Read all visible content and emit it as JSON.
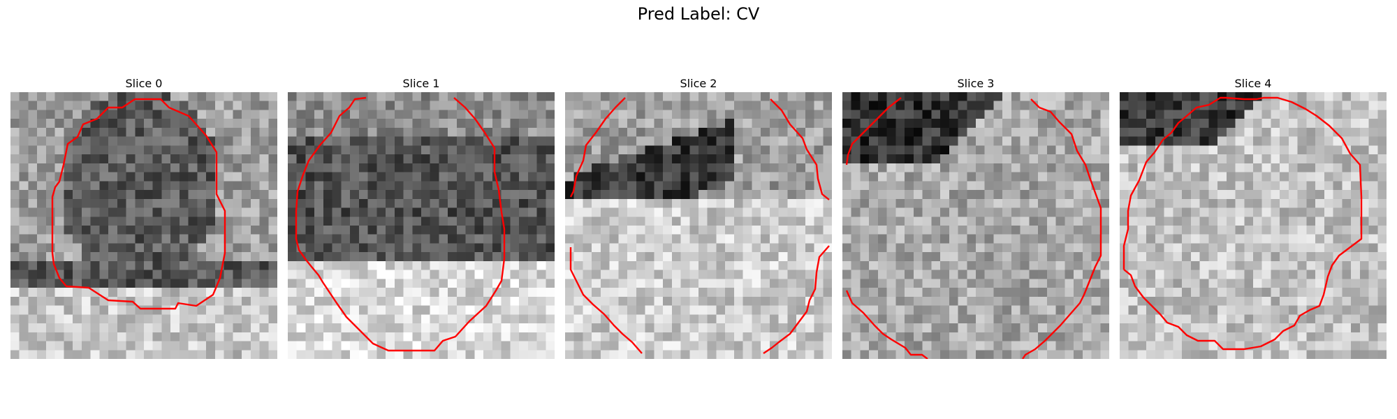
{
  "figure": {
    "title": "Pred Label: CV"
  },
  "contour_color": "#ff0000",
  "panels": [
    {
      "title": "Slice 0"
    },
    {
      "title": "Slice 1"
    },
    {
      "title": "Slice 2"
    },
    {
      "title": "Slice 3"
    },
    {
      "title": "Slice 4"
    }
  ]
}
